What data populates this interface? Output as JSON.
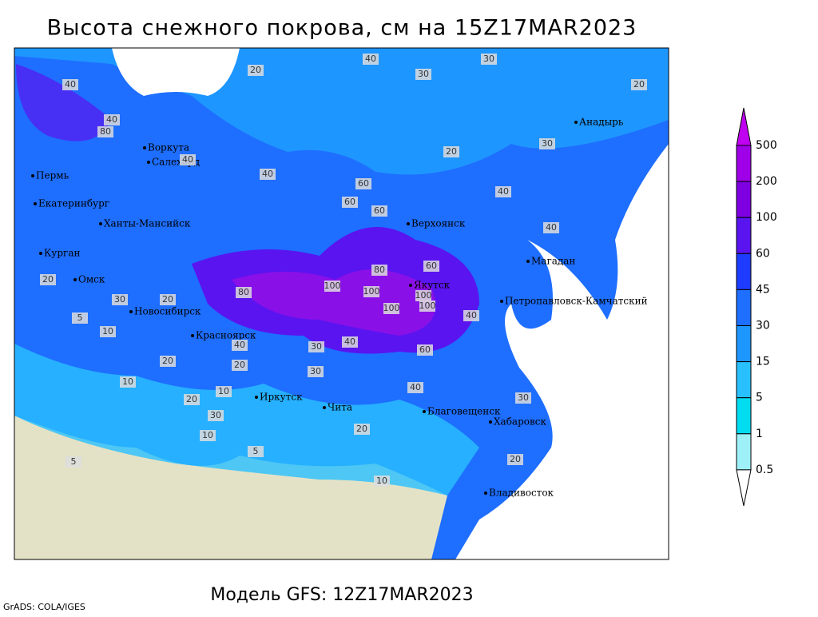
{
  "header": {
    "title": "Высота снежного покрова, см на 15Z17MAR2023"
  },
  "footer": {
    "model": "Модель GFS: 12Z17MAR2023",
    "credit": "GrADS: COLA/IGES"
  },
  "colorbar": {
    "levels": [
      500,
      200,
      100,
      60,
      45,
      30,
      15,
      5,
      1,
      0.5
    ],
    "colors": [
      "#c000f0",
      "#a000e8",
      "#7e00e0",
      "#5a14f0",
      "#1e3cff",
      "#1e6eff",
      "#1e96ff",
      "#28c0ff",
      "#00dcf0",
      "#9ef0f8",
      "#ffffff"
    ]
  },
  "map_labels": {
    "cities": [
      {
        "name": "Воркута"
      },
      {
        "name": "Салехард"
      },
      {
        "name": "Пермь"
      },
      {
        "name": "Екатеринбург"
      },
      {
        "name": "Ханты-Мансийск"
      },
      {
        "name": "Курган"
      },
      {
        "name": "Омск"
      },
      {
        "name": "Новосибирск"
      },
      {
        "name": "Красноярск"
      },
      {
        "name": "Иркутск"
      },
      {
        "name": "Чита"
      },
      {
        "name": "Верхоянск"
      },
      {
        "name": "Якутск"
      },
      {
        "name": "Магадан"
      },
      {
        "name": "Анадырь"
      },
      {
        "name": "Петропавловск-Камчатский"
      },
      {
        "name": "Благовещенск"
      },
      {
        "name": "Хабаровск"
      },
      {
        "name": "Владивосток"
      }
    ],
    "contours": [
      40,
      30,
      20,
      40,
      30,
      20,
      80,
      40,
      40,
      40,
      60,
      60,
      80,
      100,
      100,
      100,
      80,
      60,
      100,
      100,
      60,
      40,
      40,
      40,
      30,
      20,
      10,
      5,
      30,
      20,
      20,
      10,
      5,
      10,
      20,
      30,
      40,
      20,
      5,
      10,
      30,
      20,
      40,
      60,
      40,
      30,
      20,
      30,
      20,
      10
    ]
  }
}
